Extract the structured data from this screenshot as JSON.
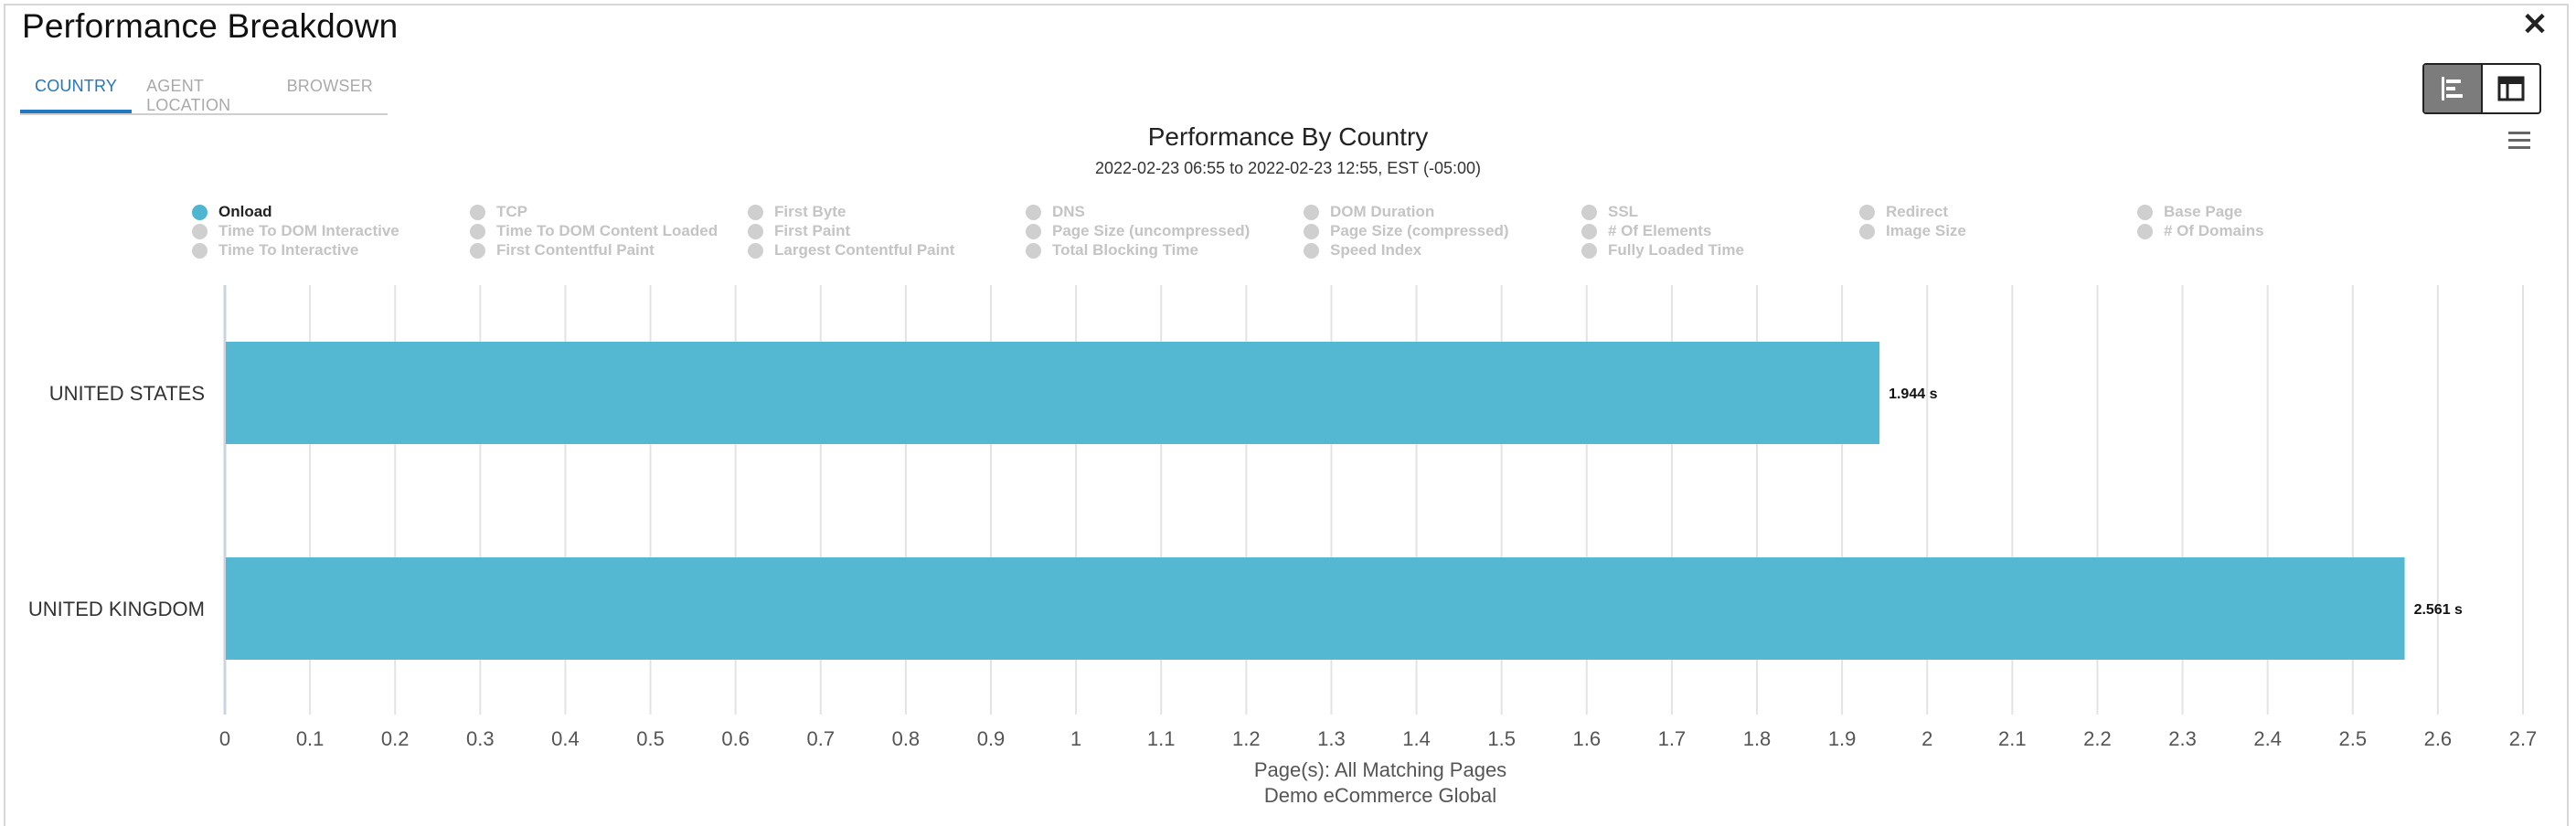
{
  "window": {
    "title": "Performance Breakdown",
    "close_icon": "close-icon"
  },
  "tabs": [
    {
      "label": "COUNTRY",
      "active": true
    },
    {
      "label": "AGENT LOCATION",
      "active": false
    },
    {
      "label": "BROWSER",
      "active": false
    }
  ],
  "view_toggle": {
    "bar_icon": "bar-chart-icon",
    "table_icon": "table-layout-icon",
    "active": "bar"
  },
  "menu_icon": "hamburger-menu-icon",
  "chart_data": {
    "type": "bar",
    "orientation": "horizontal",
    "title": "Performance By Country",
    "subtitle": "2022-02-23 06:55 to 2022-02-23 12:55, EST (-05:00)",
    "categories": [
      "UNITED STATES",
      "UNITED KINGDOM"
    ],
    "series": [
      {
        "name": "Onload",
        "values": [
          1.944,
          2.561
        ],
        "color": "#55b8d3"
      }
    ],
    "data_labels": [
      "1.944 s",
      "2.561 s"
    ],
    "xlim": [
      0,
      2.7
    ],
    "ticks": [
      "0",
      "0.1",
      "0.2",
      "0.3",
      "0.4",
      "0.5",
      "0.6",
      "0.7",
      "0.8",
      "0.9",
      "1",
      "1.1",
      "1.2",
      "1.3",
      "1.4",
      "1.5",
      "1.6",
      "1.7",
      "1.8",
      "1.9",
      "2",
      "2.1",
      "2.2",
      "2.3",
      "2.4",
      "2.5",
      "2.6",
      "2.7"
    ],
    "grid": true,
    "legend_position": "top",
    "legend": [
      "Onload",
      "TCP",
      "First Byte",
      "DNS",
      "DOM Duration",
      "SSL",
      "Redirect",
      "Base Page",
      "Time To DOM Interactive",
      "Time To DOM Content Loaded",
      "First Paint",
      "Page Size (uncompressed)",
      "Page Size (compressed)",
      "# Of Elements",
      "Image Size",
      "# Of Domains",
      "Time To Interactive",
      "First Contentful Paint",
      "Largest Contentful Paint",
      "Total Blocking Time",
      "Speed Index",
      "Fully Loaded Time"
    ],
    "legend_active": "Onload",
    "footer": [
      "Page(s): All Matching Pages",
      "Demo eCommerce Global"
    ]
  }
}
